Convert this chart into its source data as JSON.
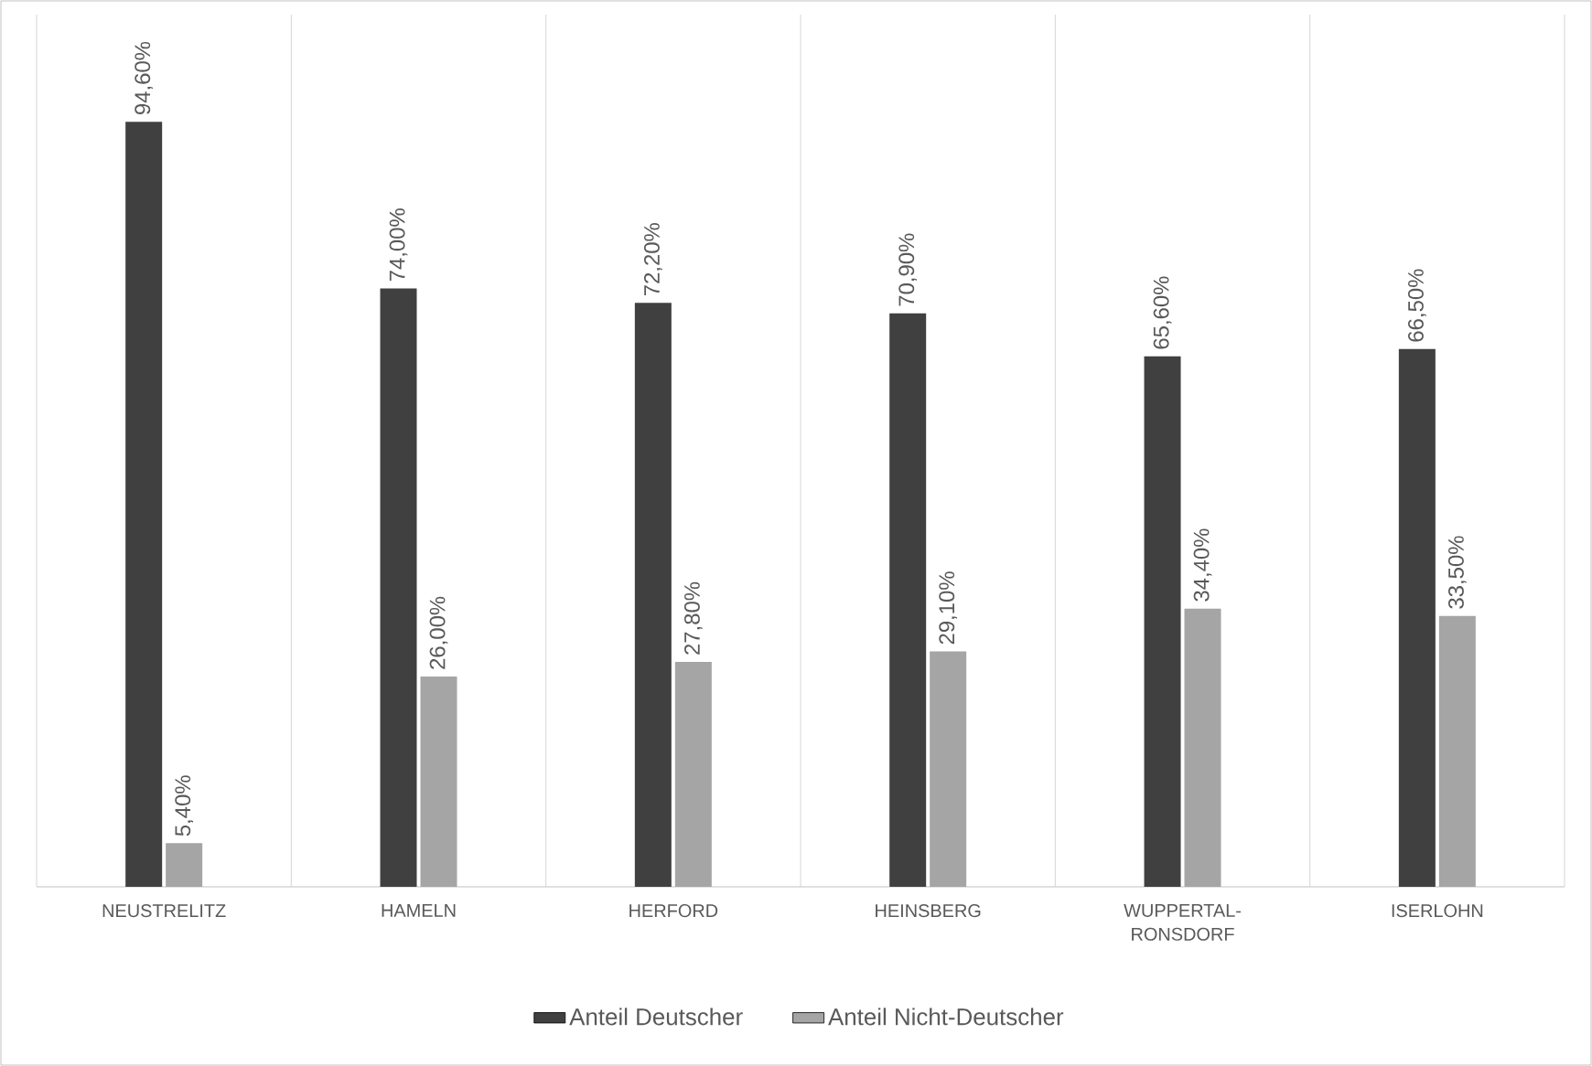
{
  "chart_data": {
    "type": "bar",
    "categories": [
      "NEUSTRELITZ",
      "HAMELN",
      "HERFORD",
      "HEINSBERG",
      "WUPPERTAL-RONSDORF",
      "ISERLOHN"
    ],
    "series": [
      {
        "name": "Anteil Deutscher",
        "color": "#404040",
        "values": [
          94.6,
          74.0,
          72.2,
          70.9,
          65.6,
          66.5
        ],
        "value_labels": [
          "94,60%",
          "74,00%",
          "72,20%",
          "70,90%",
          "65,60%",
          "66,50%"
        ]
      },
      {
        "name": "Anteil Nicht-Deutscher",
        "color": "#a5a5a5",
        "values": [
          5.4,
          26.0,
          27.8,
          29.1,
          34.4,
          33.5
        ],
        "value_labels": [
          "5,40%",
          "26,00%",
          "27,80%",
          "29,10%",
          "34,40%",
          "33,50%"
        ]
      }
    ],
    "grid": "x",
    "legend": "bottom"
  }
}
